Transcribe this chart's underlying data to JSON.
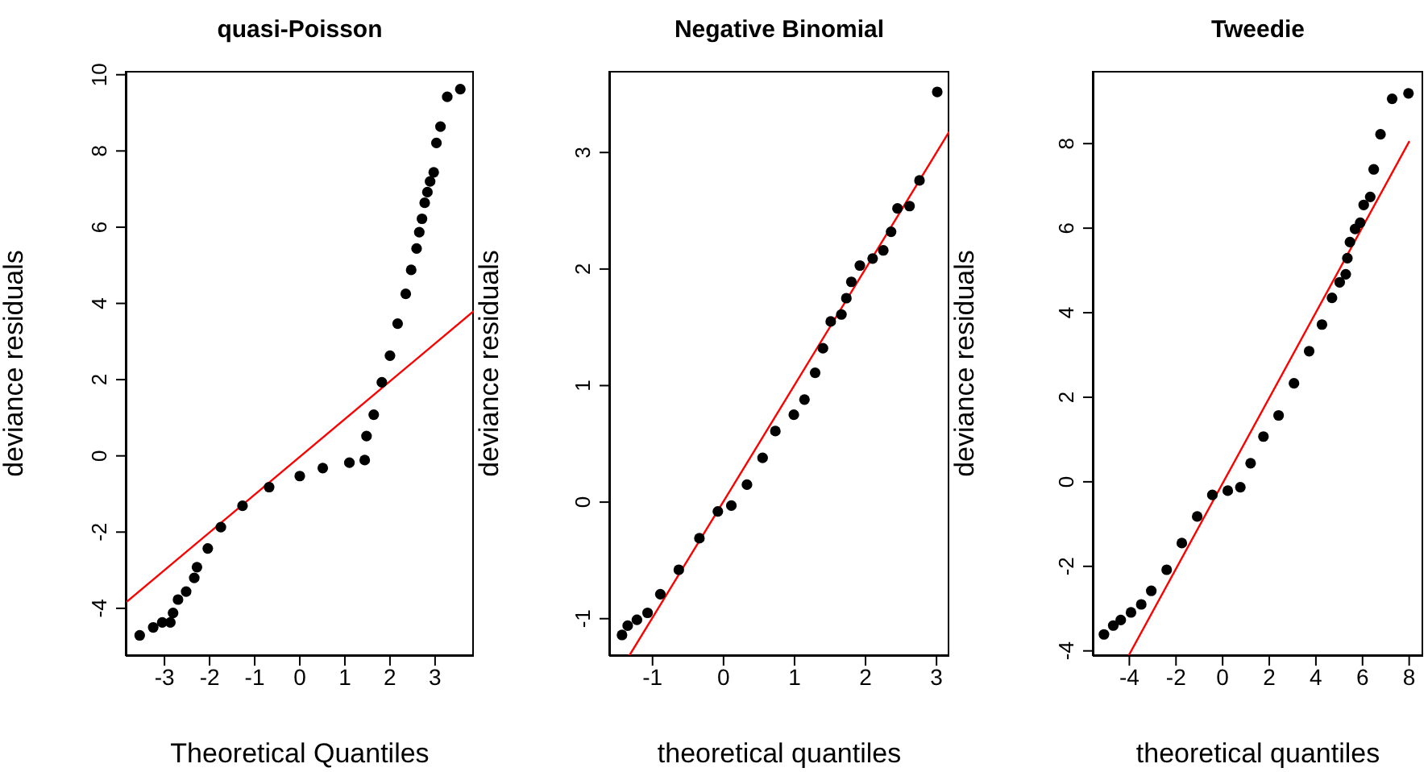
{
  "chart_data": [
    {
      "type": "scatter",
      "title": "quasi-Poisson",
      "xlabel": "Theoretical Quantiles",
      "ylabel": "deviance residuals",
      "xlim": [
        -3.86,
        3.86
      ],
      "ylim": [
        -5.25,
        10.1
      ],
      "xticks": [
        -3,
        -2,
        -1,
        0,
        1,
        2,
        3
      ],
      "yticks": [
        -4,
        -2,
        0,
        2,
        4,
        6,
        8,
        10
      ],
      "grid": false,
      "marker": "circle",
      "series": [
        {
          "color": "#000000",
          "x": [
            -3.55,
            -3.25,
            -3.05,
            -2.87,
            -2.81,
            -2.7,
            -2.52,
            -2.34,
            -2.28,
            -2.04,
            -1.75,
            -1.27,
            -0.68,
            0,
            0.51,
            1.1,
            1.44,
            1.48,
            1.64,
            1.82,
            2.0,
            2.17,
            2.35,
            2.47,
            2.59,
            2.65,
            2.71,
            2.77,
            2.83,
            2.89,
            2.97,
            3.03,
            3.12,
            3.27,
            3.56
          ],
          "values": [
            -4.71,
            -4.5,
            -4.37,
            -4.37,
            -4.12,
            -3.77,
            -3.56,
            -3.2,
            -2.92,
            -2.43,
            -1.87,
            -1.31,
            -0.82,
            -0.53,
            -0.32,
            -0.18,
            -0.11,
            0.52,
            1.08,
            1.93,
            2.63,
            3.47,
            4.25,
            4.88,
            5.44,
            5.87,
            6.22,
            6.64,
            6.92,
            7.2,
            7.44,
            8.21,
            8.64,
            9.42,
            9.62
          ]
        },
        {
          "type": "line",
          "marker": "none",
          "color": "#ff0000",
          "x": [
            -3.86,
            3.86
          ],
          "values": [
            -3.85,
            3.8
          ]
        }
      ]
    },
    {
      "type": "scatter",
      "title": "Negative Binomial",
      "xlabel": "theoretical quantiles",
      "ylabel": "deviance residuals",
      "xlim": [
        -1.61,
        3.18
      ],
      "ylim": [
        -1.32,
        3.7
      ],
      "xticks": [
        -1,
        0,
        1,
        2,
        3
      ],
      "yticks": [
        -1,
        0,
        1,
        2,
        3
      ],
      "grid": false,
      "marker": "circle",
      "series": [
        {
          "color": "#000000",
          "x": [
            -1.43,
            -1.35,
            -1.22,
            -1.07,
            -0.89,
            -0.63,
            -0.34,
            -0.08,
            0.11,
            0.33,
            0.55,
            0.73,
            0.99,
            1.14,
            1.29,
            1.4,
            1.51,
            1.66,
            1.73,
            1.8,
            1.92,
            2.1,
            2.25,
            2.36,
            2.45,
            2.62,
            2.76,
            3.01
          ],
          "values": [
            -1.14,
            -1.06,
            -1.01,
            -0.95,
            -0.79,
            -0.58,
            -0.31,
            -0.08,
            -0.03,
            0.15,
            0.38,
            0.61,
            0.75,
            0.88,
            1.11,
            1.32,
            1.55,
            1.61,
            1.75,
            1.89,
            2.03,
            2.09,
            2.16,
            2.32,
            2.52,
            2.54,
            2.76,
            3.52
          ]
        },
        {
          "type": "line",
          "marker": "none",
          "color": "#ff0000",
          "x": [
            -1.33,
            3.18
          ],
          "values": [
            -1.32,
            3.18
          ]
        }
      ]
    },
    {
      "type": "scatter",
      "title": "Tweedie",
      "xlabel": "theoretical quantiles",
      "ylabel": "deviance residuals",
      "xlim": [
        -5.57,
        8.6
      ],
      "ylim": [
        -4.12,
        9.72
      ],
      "xticks": [
        -4,
        -2,
        0,
        2,
        4,
        6,
        8
      ],
      "yticks": [
        -4,
        -2,
        0,
        2,
        4,
        6,
        8
      ],
      "grid": false,
      "marker": "circle",
      "series": [
        {
          "color": "#000000",
          "x": [
            -5.09,
            -4.69,
            -4.37,
            -3.93,
            -3.49,
            -3.06,
            -2.4,
            -1.75,
            -1.09,
            -0.44,
            0.22,
            0.76,
            1.2,
            1.75,
            2.4,
            3.06,
            3.71,
            4.26,
            4.69,
            5.02,
            5.28,
            5.35,
            5.46,
            5.68,
            5.9,
            6.05,
            6.33,
            6.48,
            6.77,
            7.27,
            7.97
          ],
          "values": [
            -3.61,
            -3.4,
            -3.27,
            -3.09,
            -2.9,
            -2.58,
            -2.08,
            -1.45,
            -0.82,
            -0.31,
            -0.21,
            -0.13,
            0.44,
            1.07,
            1.57,
            2.33,
            3.09,
            3.72,
            4.35,
            4.72,
            4.91,
            5.29,
            5.67,
            5.98,
            6.13,
            6.55,
            6.74,
            7.39,
            8.22,
            9.06,
            9.19
          ]
        },
        {
          "type": "line",
          "marker": "none",
          "color": "#ff0000",
          "x": [
            -4.04,
            8.01
          ],
          "values": [
            -4.12,
            8.06
          ]
        }
      ]
    }
  ]
}
